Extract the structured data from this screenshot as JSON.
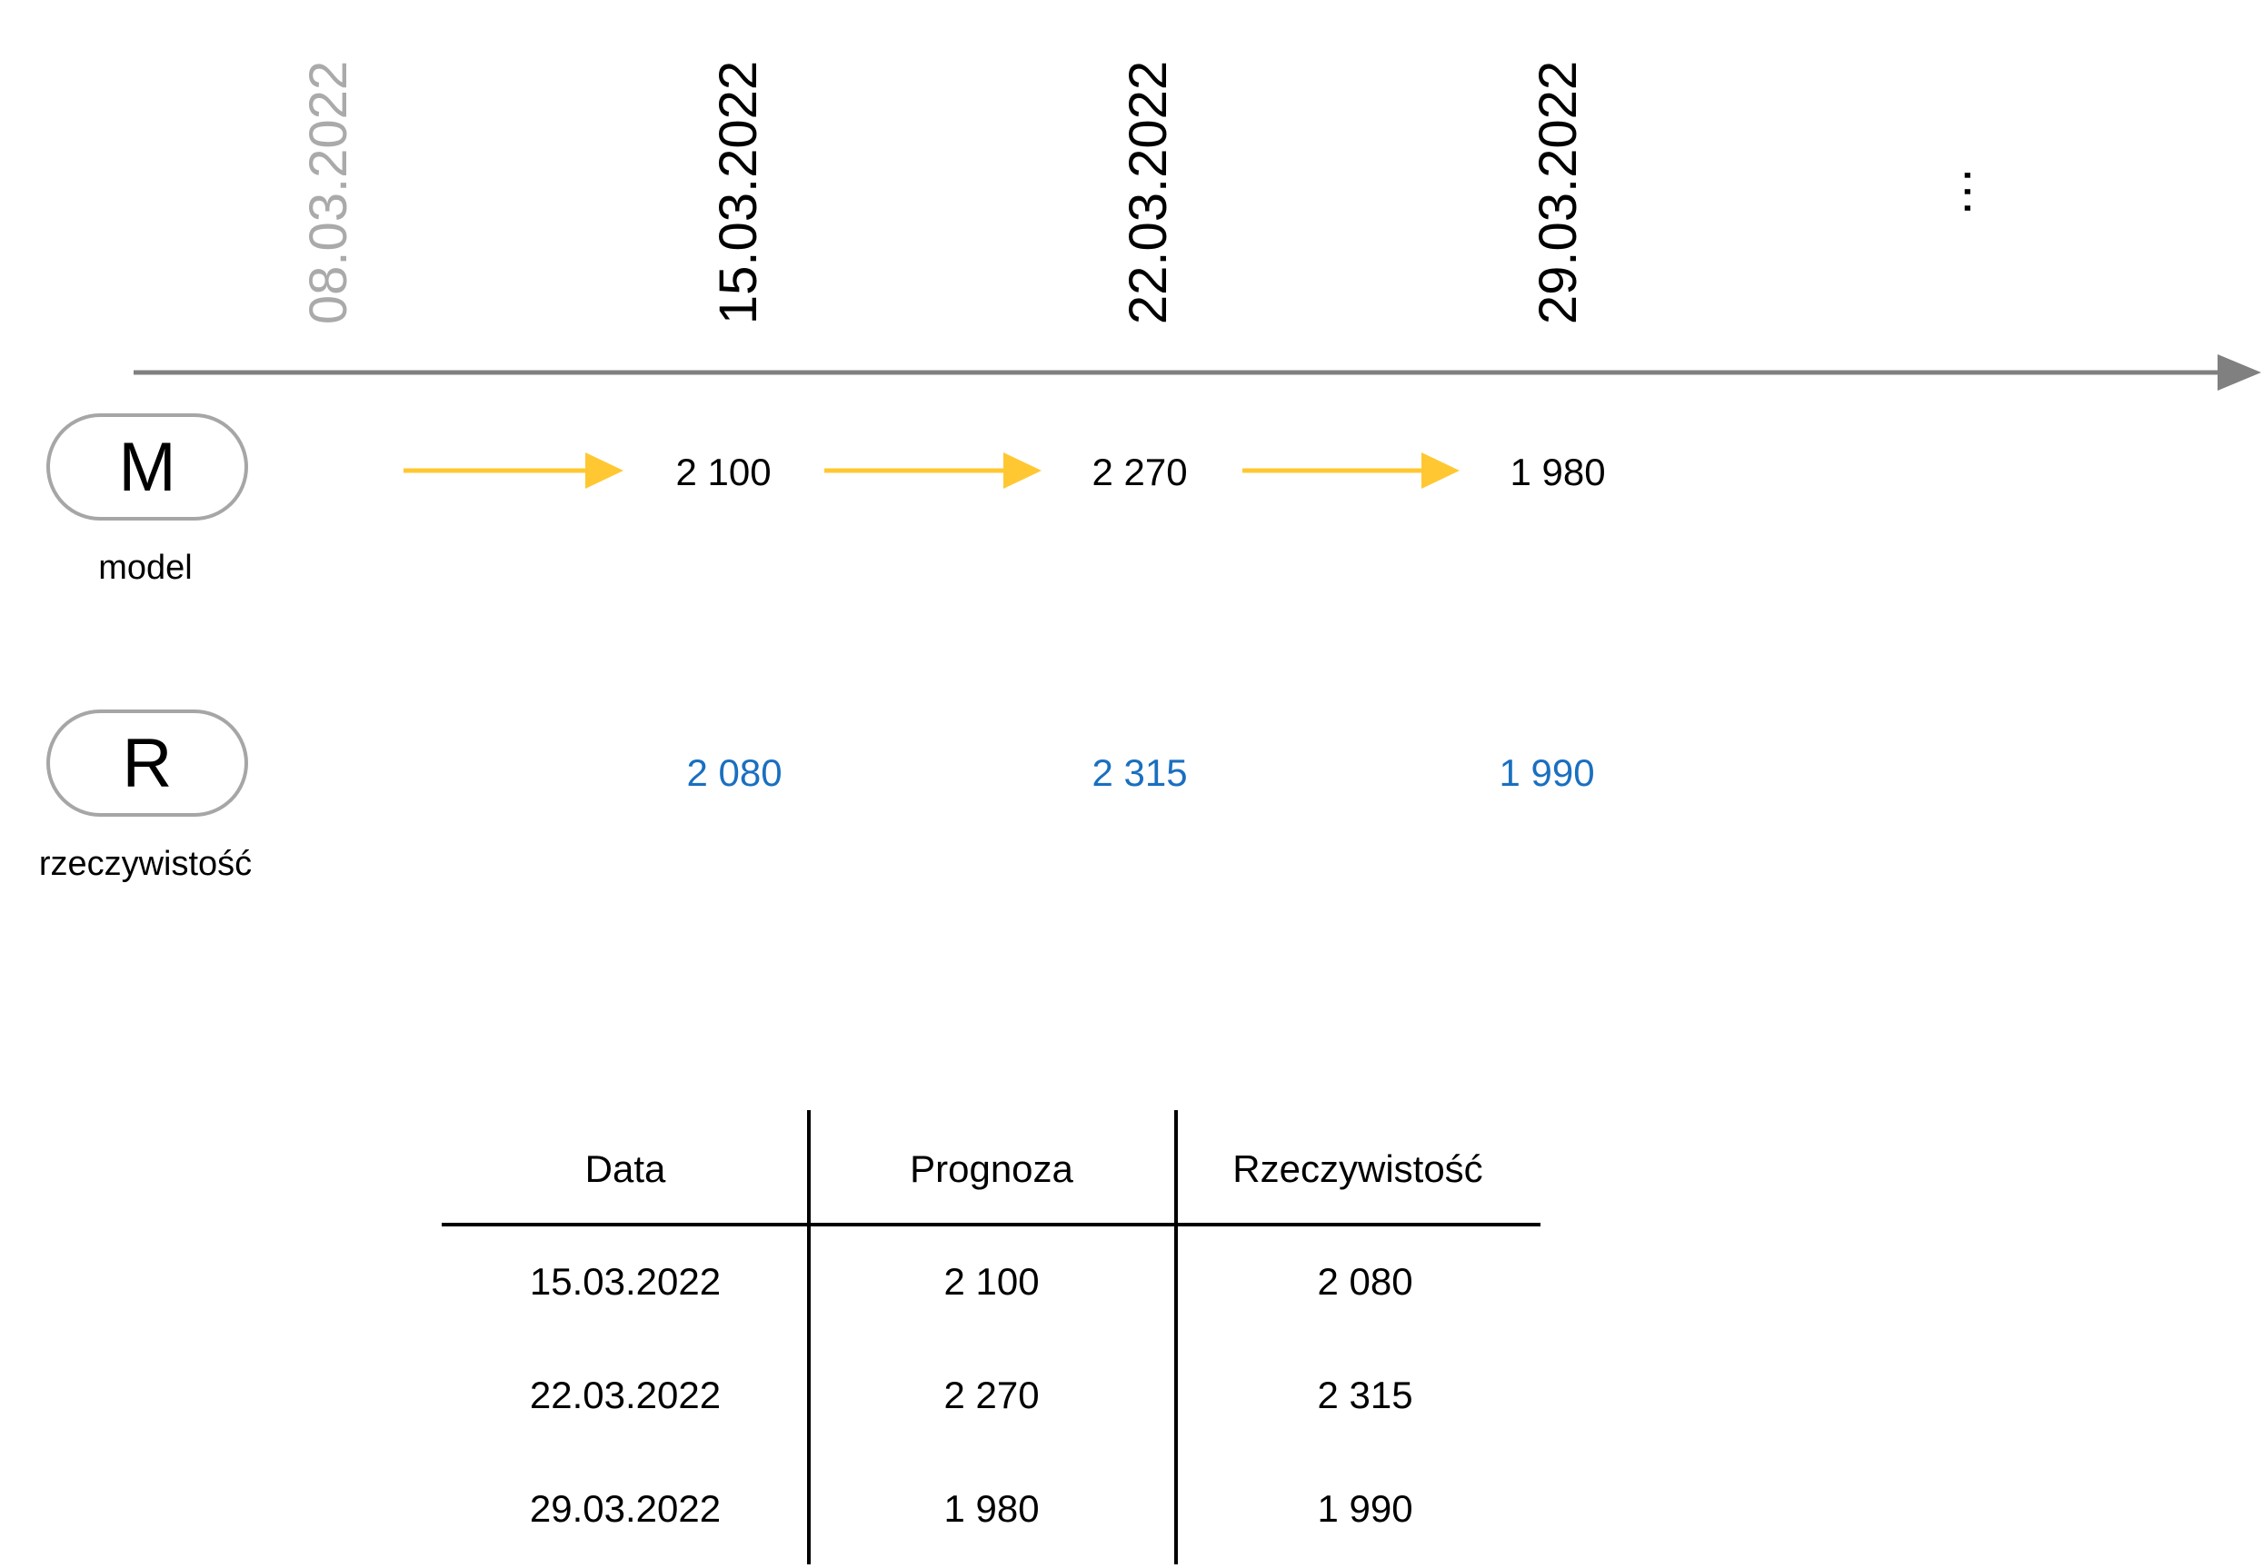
{
  "timeline": {
    "dates": [
      "08.03.2022",
      "15.03.2022",
      "22.03.2022",
      "29.03.2022"
    ],
    "ellipsis": "...",
    "axis_color": "#808080",
    "past_date_color": "#aaaaaa"
  },
  "model": {
    "symbol": "M",
    "caption": "model",
    "values": [
      "2 100",
      "2 270",
      "1 980"
    ],
    "arrow_color": "#ffc832"
  },
  "reality": {
    "symbol": "R",
    "caption": "rzeczywistość",
    "values": [
      "2 080",
      "2 315",
      "1 990"
    ],
    "value_color": "#1a6fc0"
  },
  "table": {
    "headers": [
      "Data",
      "Prognoza",
      "Rzeczywistość"
    ],
    "rows": [
      [
        "15.03.2022",
        "2 100",
        "2 080"
      ],
      [
        "22.03.2022",
        "2 270",
        "2 315"
      ],
      [
        "29.03.2022",
        "1 980",
        "1 990"
      ]
    ]
  }
}
